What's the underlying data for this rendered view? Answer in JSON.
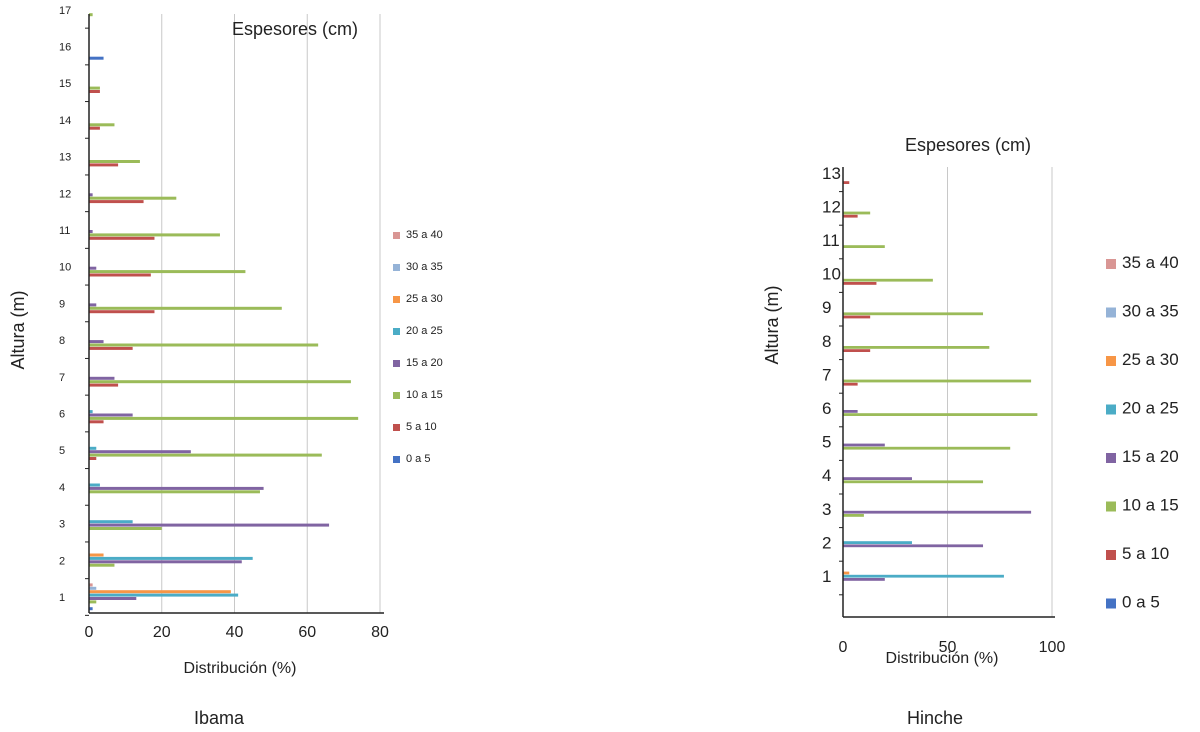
{
  "legend_labels": [
    "0 a 5",
    "5 a 10",
    "10 a 15",
    "15 a 20",
    "20 a 25",
    "25 a 30",
    "30 a 35",
    "35 a 40"
  ],
  "series_colors": {
    "0 a 5": "#4472c4",
    "5 a 10": "#c0504d",
    "10 a 15": "#9bbb59",
    "15 a 20": "#8064a2",
    "20 a 25": "#4bacc6",
    "25 a 30": "#f79646",
    "30 a 35": "#95b3d7",
    "35 a 40": "#d99694"
  },
  "chart_data": [
    {
      "type": "bar",
      "orientation": "horizontal",
      "title": "Espesores (cm)",
      "caption": "Ibama",
      "xlabel": "Distribución (%)",
      "ylabel": "Altura (m)",
      "xlim": [
        0,
        80
      ],
      "x_ticks": [
        0,
        20,
        40,
        60,
        80
      ],
      "categories": [
        "1",
        "2",
        "3",
        "4",
        "5",
        "6",
        "7",
        "8",
        "9",
        "10",
        "11",
        "12",
        "13",
        "14",
        "15",
        "16",
        "17"
      ],
      "grid": true,
      "legend_position": "right",
      "series": [
        {
          "name": "0 a 5",
          "values": [
            1,
            0,
            0,
            0,
            0,
            0,
            0,
            0,
            0,
            0,
            0,
            0,
            0,
            0,
            0,
            4,
            0
          ]
        },
        {
          "name": "5 a 10",
          "values": [
            0,
            0,
            0,
            0,
            2,
            4,
            8,
            12,
            18,
            17,
            18,
            15,
            8,
            3,
            3,
            0,
            0
          ]
        },
        {
          "name": "10 a 15",
          "values": [
            2,
            7,
            20,
            47,
            64,
            74,
            72,
            63,
            53,
            43,
            36,
            24,
            14,
            7,
            3,
            0,
            1
          ]
        },
        {
          "name": "15 a 20",
          "values": [
            13,
            42,
            66,
            48,
            28,
            12,
            7,
            4,
            2,
            2,
            1,
            1,
            0,
            0,
            0,
            0,
            0
          ]
        },
        {
          "name": "20 a 25",
          "values": [
            41,
            45,
            12,
            3,
            2,
            1,
            0,
            0,
            0,
            0,
            0,
            0,
            0,
            0,
            0,
            0,
            0
          ]
        },
        {
          "name": "25 a 30",
          "values": [
            39,
            4,
            0,
            0,
            0,
            0,
            0,
            0,
            0,
            0,
            0,
            0,
            0,
            0,
            0,
            0,
            0
          ]
        },
        {
          "name": "30 a 35",
          "values": [
            2,
            0,
            0,
            0,
            0,
            0,
            0,
            0,
            0,
            0,
            0,
            0,
            0,
            0,
            0,
            0,
            0
          ]
        },
        {
          "name": "35 a 40",
          "values": [
            1,
            0,
            0,
            0,
            0,
            0,
            0,
            0,
            0,
            0,
            0,
            0,
            0,
            0,
            0,
            0,
            0
          ]
        }
      ]
    },
    {
      "type": "bar",
      "orientation": "horizontal",
      "title": "Espesores (cm)",
      "caption": "Hinche",
      "xlabel": "Distribución (%)",
      "ylabel": "Altura (m)",
      "xlim": [
        0,
        100
      ],
      "x_ticks": [
        0,
        50,
        100
      ],
      "categories": [
        "1",
        "2",
        "3",
        "4",
        "5",
        "6",
        "7",
        "8",
        "9",
        "10",
        "11",
        "12",
        "13"
      ],
      "grid": true,
      "legend_position": "right",
      "series": [
        {
          "name": "0 a 5",
          "values": [
            0,
            0,
            0,
            0,
            0,
            0,
            0,
            0,
            0,
            0,
            0,
            0,
            0
          ]
        },
        {
          "name": "5 a 10",
          "values": [
            0,
            0,
            0,
            0,
            0,
            0,
            7,
            13,
            13,
            16,
            0,
            7,
            3
          ]
        },
        {
          "name": "10 a 15",
          "values": [
            0,
            0,
            10,
            67,
            80,
            93,
            90,
            70,
            67,
            43,
            20,
            13,
            0
          ]
        },
        {
          "name": "15 a 20",
          "values": [
            20,
            67,
            90,
            33,
            20,
            7,
            0,
            0,
            0,
            0,
            0,
            0,
            0
          ]
        },
        {
          "name": "20 a 25",
          "values": [
            77,
            33,
            0,
            0,
            0,
            0,
            0,
            0,
            0,
            0,
            0,
            0,
            0
          ]
        },
        {
          "name": "25 a 30",
          "values": [
            3,
            0,
            0,
            0,
            0,
            0,
            0,
            0,
            0,
            0,
            0,
            0,
            0
          ]
        },
        {
          "name": "30 a 35",
          "values": [
            0,
            0,
            0,
            0,
            0,
            0,
            0,
            0,
            0,
            0,
            0,
            0,
            0
          ]
        },
        {
          "name": "35 a 40",
          "values": [
            0,
            0,
            0,
            0,
            0,
            0,
            0,
            0,
            0,
            0,
            0,
            0,
            0
          ]
        }
      ]
    }
  ]
}
